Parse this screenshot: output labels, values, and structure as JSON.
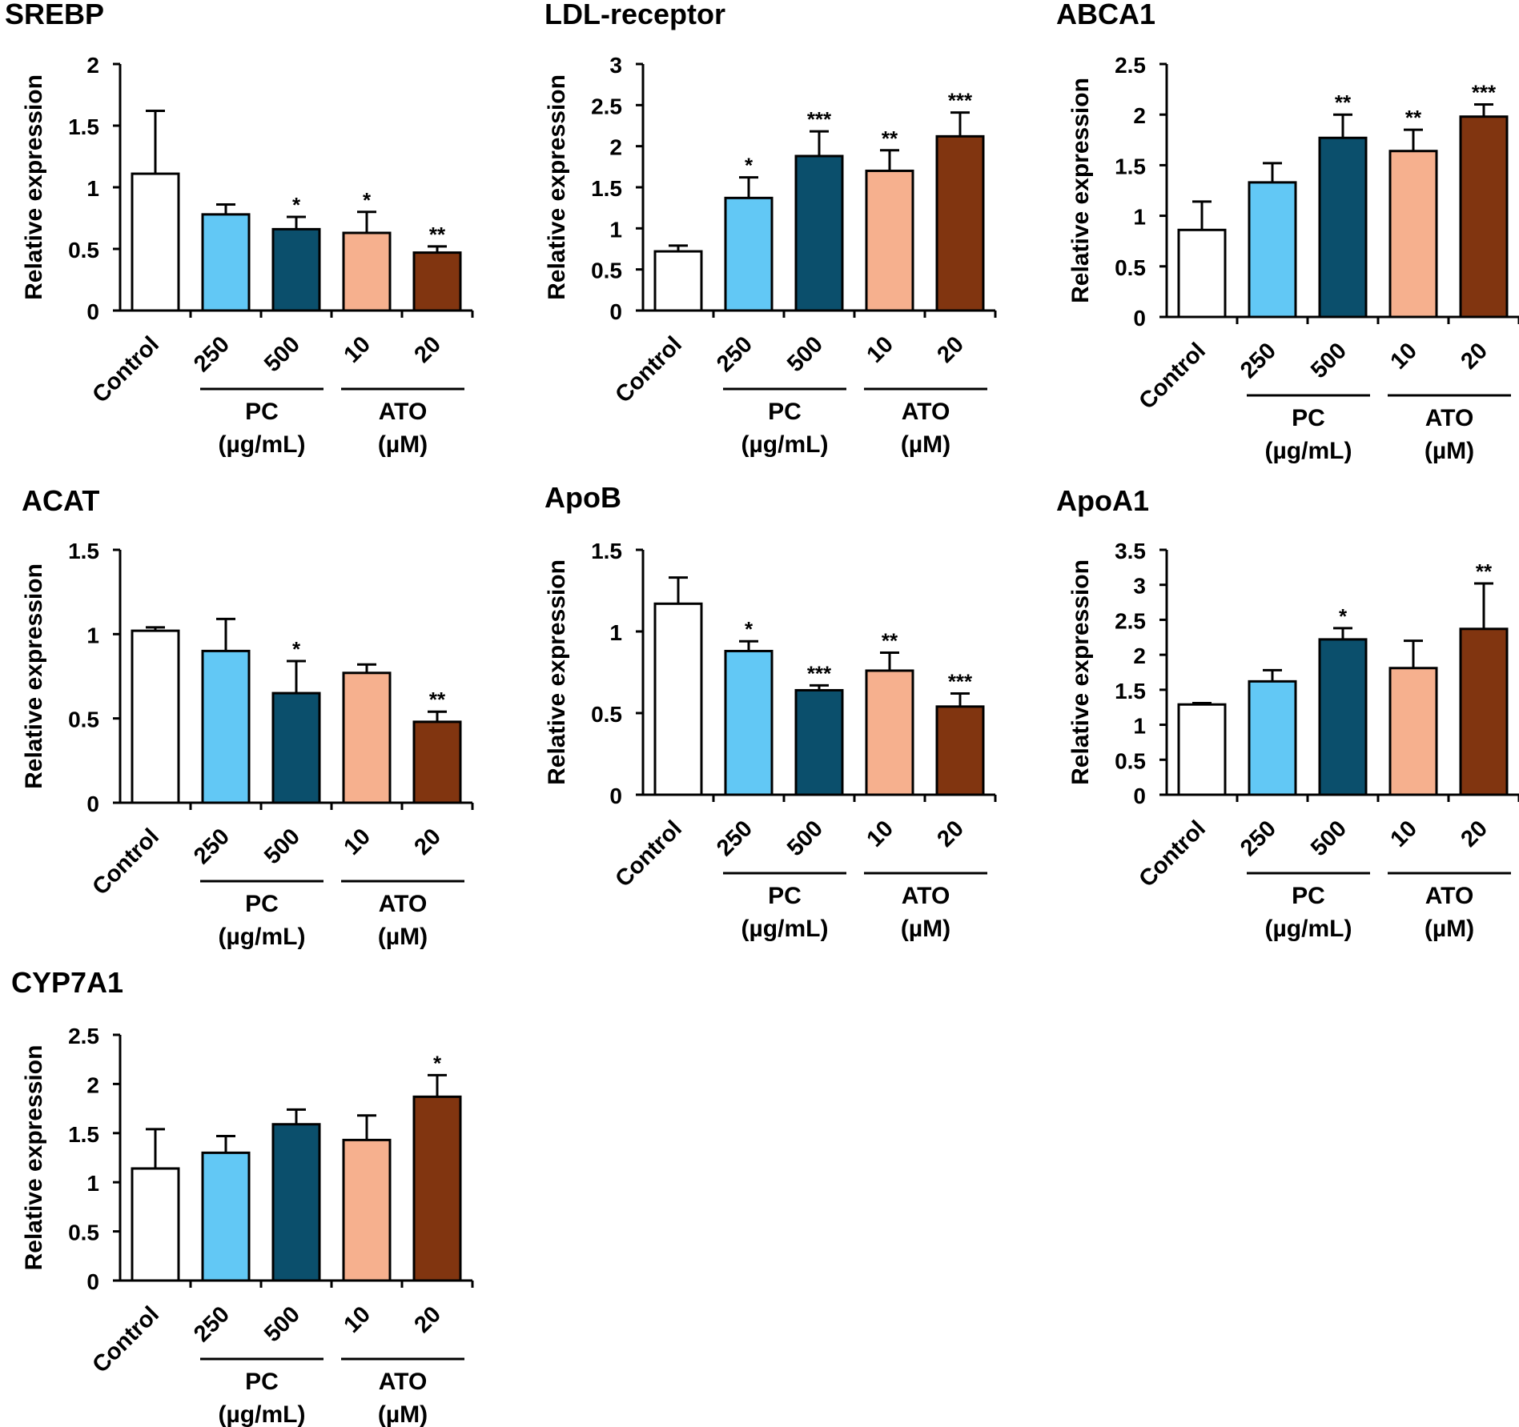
{
  "figure": {
    "colors": {
      "control": "#ffffff",
      "pc250": "#62c8f5",
      "pc500": "#0b4f6c",
      "ato10": "#f6b08e",
      "ato20": "#813510",
      "outline": "#000000"
    },
    "ylabel": "Relative expression",
    "categories": [
      "Control",
      "250",
      "500",
      "10",
      "20"
    ],
    "groups": [
      {
        "label_line1": "PC",
        "label_line2": "(µg/mL)"
      },
      {
        "label_line1": "ATO",
        "label_line2": "(µM)"
      }
    ]
  },
  "chart_data": [
    {
      "type": "bar",
      "title": "SREBP",
      "ylabel": "Relative expression",
      "ylim": [
        0,
        2
      ],
      "yticks": [
        0,
        0.5,
        1,
        1.5,
        2
      ],
      "ytick_labels": [
        "0",
        "0.5",
        "1",
        "1.5",
        "2"
      ],
      "categories": [
        "Control",
        "250",
        "500",
        "10",
        "20"
      ],
      "values": [
        1.11,
        0.78,
        0.66,
        0.63,
        0.47
      ],
      "errors": [
        0.51,
        0.08,
        0.1,
        0.17,
        0.05
      ],
      "significance": [
        "",
        "",
        "*",
        "*",
        "**"
      ]
    },
    {
      "type": "bar",
      "title": "LDL-receptor",
      "ylabel": "Relative expression",
      "ylim": [
        0,
        3
      ],
      "yticks": [
        0,
        0.5,
        1,
        1.5,
        2,
        2.5,
        3
      ],
      "ytick_labels": [
        "0",
        "0.5",
        "1",
        "1.5",
        "2",
        "2.5",
        "3"
      ],
      "categories": [
        "Control",
        "250",
        "500",
        "10",
        "20"
      ],
      "values": [
        0.72,
        1.37,
        1.88,
        1.7,
        2.12
      ],
      "errors": [
        0.07,
        0.25,
        0.3,
        0.25,
        0.29
      ],
      "significance": [
        "",
        "*",
        "***",
        "**",
        "***"
      ]
    },
    {
      "type": "bar",
      "title": "ABCA1",
      "ylabel": "Relative expression",
      "ylim": [
        0,
        2.5
      ],
      "yticks": [
        0,
        0.5,
        1,
        1.5,
        2,
        2.5
      ],
      "ytick_labels": [
        "0",
        "0.5",
        "1",
        "1.5",
        "2",
        "2.5"
      ],
      "categories": [
        "Control",
        "250",
        "500",
        "10",
        "20"
      ],
      "values": [
        0.86,
        1.33,
        1.77,
        1.64,
        1.98
      ],
      "errors": [
        0.28,
        0.19,
        0.23,
        0.21,
        0.12
      ],
      "significance": [
        "",
        "",
        "**",
        "**",
        "***"
      ]
    },
    {
      "type": "bar",
      "title": "ACAT",
      "ylabel": "Relative expression",
      "ylim": [
        0,
        1.5
      ],
      "yticks": [
        0,
        0.5,
        1,
        1.5
      ],
      "ytick_labels": [
        "0",
        "0.5",
        "1",
        "1.5"
      ],
      "categories": [
        "Control",
        "250",
        "500",
        "10",
        "20"
      ],
      "values": [
        1.02,
        0.9,
        0.65,
        0.77,
        0.48
      ],
      "errors": [
        0.02,
        0.19,
        0.19,
        0.05,
        0.06
      ],
      "significance": [
        "",
        "",
        "*",
        "",
        "**"
      ]
    },
    {
      "type": "bar",
      "title": "ApoB",
      "ylabel": "Relative expression",
      "ylim": [
        0,
        1.5
      ],
      "yticks": [
        0,
        0.5,
        1,
        1.5
      ],
      "ytick_labels": [
        "0",
        "0.5",
        "1",
        "1.5"
      ],
      "categories": [
        "Control",
        "250",
        "500",
        "10",
        "20"
      ],
      "values": [
        1.17,
        0.88,
        0.64,
        0.76,
        0.54
      ],
      "errors": [
        0.16,
        0.06,
        0.03,
        0.11,
        0.08
      ],
      "significance": [
        "",
        "*",
        "***",
        "**",
        "***"
      ]
    },
    {
      "type": "bar",
      "title": "ApoA1",
      "ylabel": "Relative expression",
      "ylim": [
        0,
        3.5
      ],
      "yticks": [
        0,
        0.5,
        1,
        1.5,
        2,
        2.5,
        3,
        3.5
      ],
      "ytick_labels": [
        "0",
        "0.5",
        "1",
        "1.5",
        "2",
        "2.5",
        "3",
        "3.5"
      ],
      "categories": [
        "Control",
        "250",
        "500",
        "10",
        "20"
      ],
      "values": [
        1.29,
        1.62,
        2.22,
        1.81,
        2.37
      ],
      "errors": [
        0.02,
        0.16,
        0.16,
        0.39,
        0.65
      ],
      "significance": [
        "",
        "",
        "*",
        "",
        "**"
      ]
    },
    {
      "type": "bar",
      "title": "CYP7A1",
      "ylabel": "Relative expression",
      "ylim": [
        0,
        2.5
      ],
      "yticks": [
        0,
        0.5,
        1,
        1.5,
        2,
        2.5
      ],
      "ytick_labels": [
        "0",
        "0.5",
        "1",
        "1.5",
        "2",
        "2.5"
      ],
      "categories": [
        "Control",
        "250",
        "500",
        "10",
        "20"
      ],
      "values": [
        1.14,
        1.3,
        1.59,
        1.43,
        1.87
      ],
      "errors": [
        0.4,
        0.17,
        0.15,
        0.25,
        0.22
      ],
      "significance": [
        "",
        "",
        "",
        "",
        "*"
      ]
    }
  ]
}
